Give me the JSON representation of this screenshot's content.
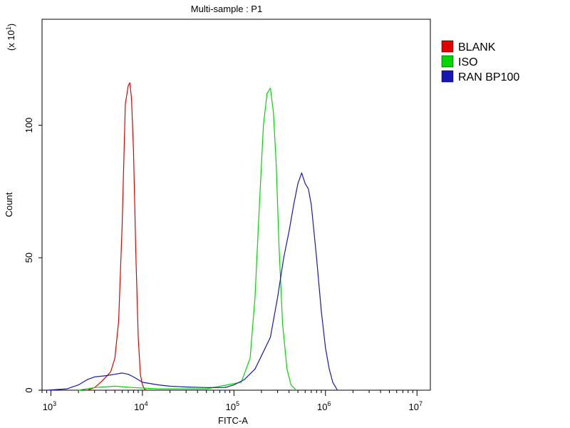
{
  "chart_data": {
    "type": "line",
    "title": "Multi-sample : P1",
    "xlabel": "FITC-A",
    "ylabel": "Count",
    "y_multiplier_label": "(x 10",
    "y_multiplier_exp": "1",
    "y_multiplier_close": ")",
    "xscale": "log",
    "xlim": [
      800,
      14000000
    ],
    "ylim": [
      0,
      1400
    ],
    "x_ticks": [
      {
        "base": "10",
        "exp": "3",
        "value": 1000
      },
      {
        "base": "10",
        "exp": "4",
        "value": 10000
      },
      {
        "base": "10",
        "exp": "5",
        "value": 100000
      },
      {
        "base": "10",
        "exp": "6",
        "value": 1000000
      },
      {
        "base": "10",
        "exp": "7",
        "value": 10000000
      }
    ],
    "y_ticks": [
      {
        "label": "0",
        "value": 0
      },
      {
        "label": "50",
        "value": 500
      },
      {
        "label": "100",
        "value": 1000
      }
    ],
    "grid": false,
    "legend_position": "right",
    "series": [
      {
        "name": "BLANK",
        "color": "#e00000",
        "x": [
          2500,
          3000,
          3500,
          4000,
          4500,
          5000,
          5500,
          6000,
          6500,
          7000,
          7300,
          7600,
          8000,
          8500,
          9000,
          9500,
          10000,
          10500,
          11000
        ],
        "y": [
          0,
          10,
          30,
          50,
          70,
          120,
          260,
          620,
          1080,
          1150,
          1160,
          1100,
          900,
          500,
          200,
          60,
          20,
          5,
          0
        ]
      },
      {
        "name": "ISO",
        "color": "#00d800",
        "x": [
          2000,
          3000,
          5000,
          8000,
          15000,
          50000,
          120000,
          150000,
          170000,
          190000,
          210000,
          230000,
          250000,
          270000,
          290000,
          310000,
          340000,
          380000,
          420000,
          480000
        ],
        "y": [
          0,
          10,
          15,
          10,
          5,
          5,
          30,
          120,
          350,
          700,
          1000,
          1120,
          1140,
          1050,
          850,
          550,
          250,
          80,
          20,
          0
        ]
      },
      {
        "name": "RAN BP100",
        "color": "#1818b0",
        "x": [
          900,
          1500,
          2000,
          2500,
          3000,
          4000,
          5000,
          6000,
          7000,
          8000,
          10000,
          15000,
          20000,
          30000,
          50000,
          80000,
          100000,
          130000,
          170000,
          200000,
          250000,
          300000,
          350000,
          400000,
          450000,
          500000,
          550000,
          600000,
          650000,
          700000,
          800000,
          900000,
          1000000,
          1100000,
          1200000,
          1300000,
          1350000
        ],
        "y": [
          0,
          5,
          20,
          40,
          50,
          55,
          60,
          65,
          60,
          50,
          30,
          20,
          15,
          12,
          10,
          10,
          20,
          40,
          80,
          130,
          200,
          350,
          500,
          600,
          700,
          780,
          820,
          780,
          760,
          700,
          500,
          300,
          160,
          80,
          30,
          10,
          0
        ]
      }
    ]
  }
}
